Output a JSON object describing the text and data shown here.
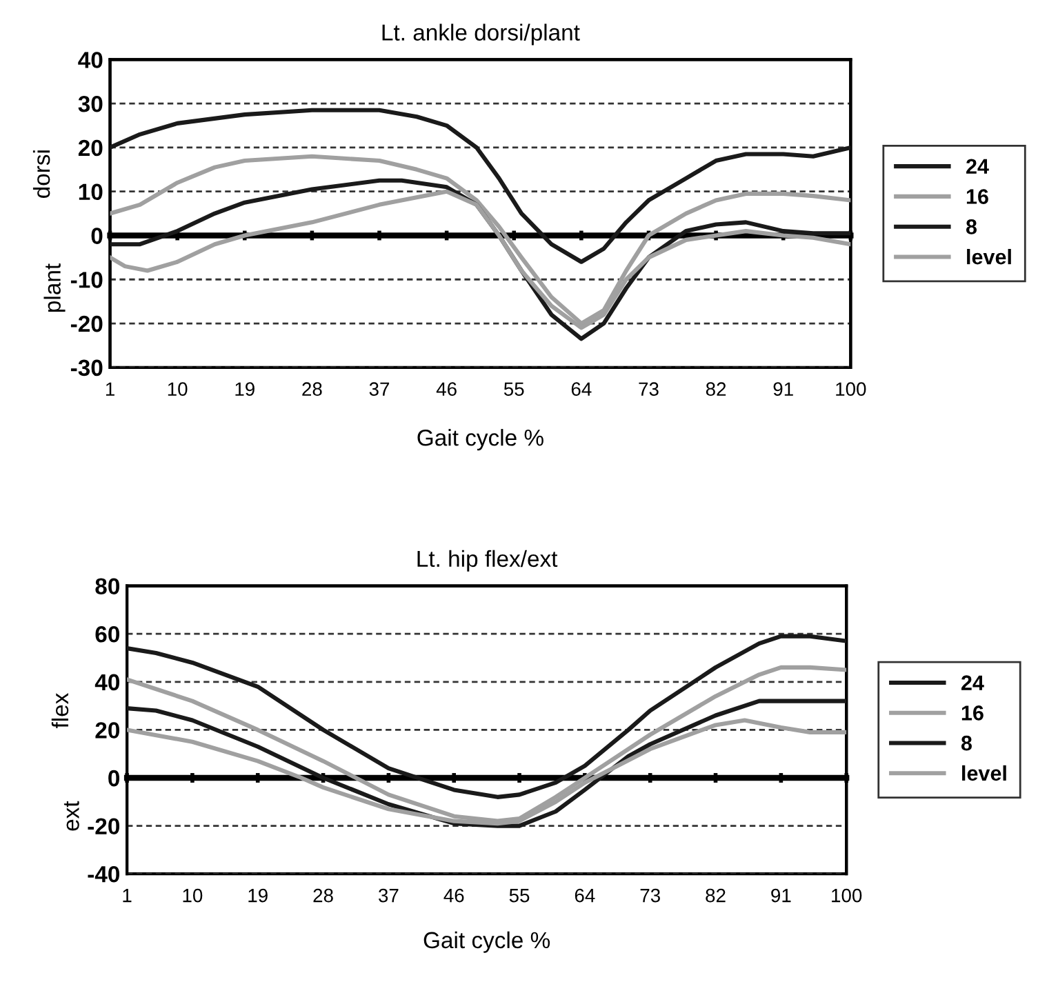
{
  "chart_data": [
    {
      "type": "line",
      "title": "Lt. ankle dorsi/plant",
      "xlabel": "Gait cycle %",
      "ylabel": "dorsi",
      "annotations": [
        "plant"
      ],
      "xlim": [
        1,
        100
      ],
      "xticks": [
        1,
        10,
        19,
        28,
        37,
        46,
        55,
        64,
        73,
        82,
        91,
        100
      ],
      "ylim": [
        -30,
        40
      ],
      "yticks": [
        -30,
        -20,
        -10,
        0,
        10,
        20,
        30,
        40
      ],
      "grid": "y",
      "legend": "right",
      "marker": "none",
      "line_style": "solid",
      "series": [
        {
          "name": "24",
          "color": "#1a1a1a",
          "x": [
            1,
            5,
            10,
            19,
            28,
            37,
            42,
            46,
            50,
            53,
            56,
            60,
            64,
            67,
            70,
            73,
            78,
            82,
            86,
            91,
            95,
            100
          ],
          "values": [
            20,
            23,
            25.5,
            27.5,
            28.5,
            28.5,
            27,
            25,
            20,
            13,
            5,
            -2,
            -6,
            -3,
            3,
            8,
            13,
            17,
            18.5,
            18.5,
            18,
            20
          ]
        },
        {
          "name": "16",
          "color": "#a0a0a0",
          "x": [
            1,
            5,
            10,
            15,
            19,
            28,
            37,
            42,
            46,
            50,
            53,
            56,
            60,
            64,
            67,
            70,
            73,
            78,
            82,
            86,
            91,
            95,
            100
          ],
          "values": [
            5,
            7,
            12,
            15.5,
            17,
            18,
            17,
            15,
            13,
            8,
            2,
            -5,
            -14,
            -20,
            -17,
            -8,
            0,
            5,
            8,
            9.5,
            9.5,
            9,
            8
          ]
        },
        {
          "name": "8",
          "color": "#1a1a1a",
          "x": [
            1,
            5,
            10,
            15,
            19,
            28,
            37,
            40,
            46,
            50,
            53,
            56,
            60,
            64,
            67,
            70,
            73,
            78,
            82,
            86,
            91,
            95,
            100
          ],
          "values": [
            -2,
            -2,
            1,
            5,
            7.5,
            10.5,
            12.5,
            12.5,
            11,
            7,
            0,
            -8,
            -18,
            -23.5,
            -20,
            -12,
            -5,
            1,
            2.5,
            3,
            1,
            0.5,
            0.5
          ]
        },
        {
          "name": "level",
          "color": "#a0a0a0",
          "x": [
            1,
            3,
            6,
            10,
            15,
            19,
            28,
            37,
            46,
            50,
            53,
            56,
            60,
            64,
            67,
            70,
            73,
            78,
            82,
            86,
            91,
            95,
            100
          ],
          "values": [
            -5,
            -7,
            -8,
            -6,
            -2,
            0,
            3,
            7,
            10,
            7,
            0,
            -8,
            -16,
            -21,
            -18,
            -10,
            -5,
            -1,
            0,
            1,
            0,
            -0.5,
            -2
          ]
        }
      ]
    },
    {
      "type": "line",
      "title": "Lt. hip flex/ext",
      "xlabel": "Gait cycle %",
      "ylabel": "flex",
      "annotations": [
        "ext"
      ],
      "xlim": [
        1,
        100
      ],
      "xticks": [
        1,
        10,
        19,
        28,
        37,
        46,
        55,
        64,
        73,
        82,
        91,
        100
      ],
      "ylim": [
        -40,
        80
      ],
      "yticks": [
        -40,
        -20,
        0,
        20,
        40,
        60,
        80
      ],
      "grid": "y",
      "legend": "right",
      "marker": "none",
      "line_style": "solid",
      "series": [
        {
          "name": "24",
          "color": "#1a1a1a",
          "x": [
            1,
            5,
            10,
            19,
            28,
            37,
            46,
            52,
            55,
            60,
            64,
            70,
            73,
            82,
            88,
            91,
            95,
            100
          ],
          "values": [
            54,
            52,
            48,
            38,
            20,
            4,
            -5,
            -8,
            -7,
            -2,
            5,
            20,
            28,
            46,
            56,
            59,
            59,
            57
          ]
        },
        {
          "name": "16",
          "color": "#a0a0a0",
          "x": [
            1,
            10,
            19,
            28,
            37,
            46,
            52,
            55,
            60,
            64,
            73,
            82,
            88,
            91,
            95,
            100
          ],
          "values": [
            41,
            32,
            20,
            7,
            -7,
            -16,
            -18,
            -17,
            -8,
            0,
            18,
            34,
            43,
            46,
            46,
            45
          ]
        },
        {
          "name": "8",
          "color": "#1a1a1a",
          "x": [
            1,
            5,
            10,
            19,
            28,
            37,
            46,
            52,
            55,
            60,
            64,
            70,
            73,
            82,
            88,
            91,
            95,
            100
          ],
          "values": [
            29,
            28,
            24,
            13,
            0,
            -11,
            -19,
            -20,
            -20,
            -14,
            -5,
            9,
            14,
            26,
            32,
            32,
            32,
            32
          ]
        },
        {
          "name": "level",
          "color": "#a0a0a0",
          "x": [
            1,
            10,
            19,
            25,
            28,
            37,
            46,
            52,
            55,
            60,
            64,
            73,
            82,
            86,
            91,
            95,
            100
          ],
          "values": [
            20,
            15,
            7,
            0,
            -4,
            -13,
            -18,
            -19,
            -18,
            -10,
            -2,
            12,
            22,
            24,
            21,
            19,
            19
          ]
        }
      ]
    }
  ]
}
